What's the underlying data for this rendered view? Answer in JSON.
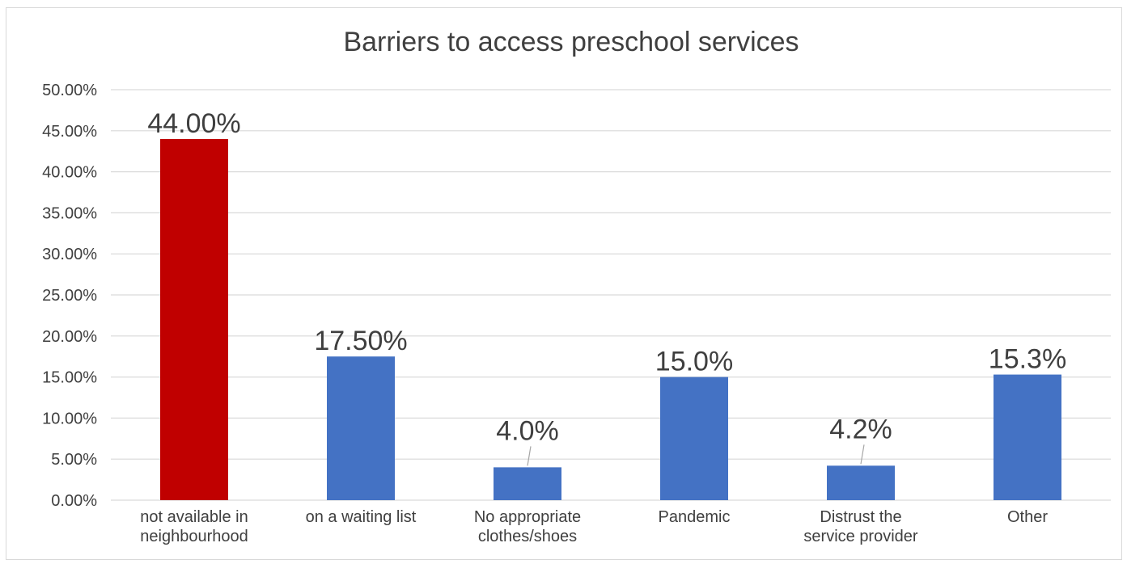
{
  "chart_data": {
    "type": "bar",
    "title": "Barriers to access preschool services",
    "xlabel": "",
    "ylabel": "",
    "ylim": [
      0,
      50
    ],
    "yticks": [
      "0.00%",
      "5.00%",
      "10.00%",
      "15.00%",
      "20.00%",
      "25.00%",
      "30.00%",
      "35.00%",
      "40.00%",
      "45.00%",
      "50.00%"
    ],
    "categories": [
      [
        "not available in",
        "neighbourhood"
      ],
      [
        "on a waiting list"
      ],
      [
        "No appropriate",
        "clothes/shoes"
      ],
      [
        "Pandemic"
      ],
      [
        "Distrust the",
        "service provider"
      ],
      [
        "Other"
      ]
    ],
    "values": [
      44.0,
      17.5,
      4.0,
      15.0,
      4.2,
      15.3
    ],
    "data_labels": [
      "44.00%",
      "17.50%",
      "4.0%",
      "15.0%",
      "4.2%",
      "15.3%"
    ],
    "bar_colors": [
      "#c00000",
      "#4472c4",
      "#4472c4",
      "#4472c4",
      "#4472c4",
      "#4472c4"
    ],
    "grid": true,
    "legend": "none"
  }
}
